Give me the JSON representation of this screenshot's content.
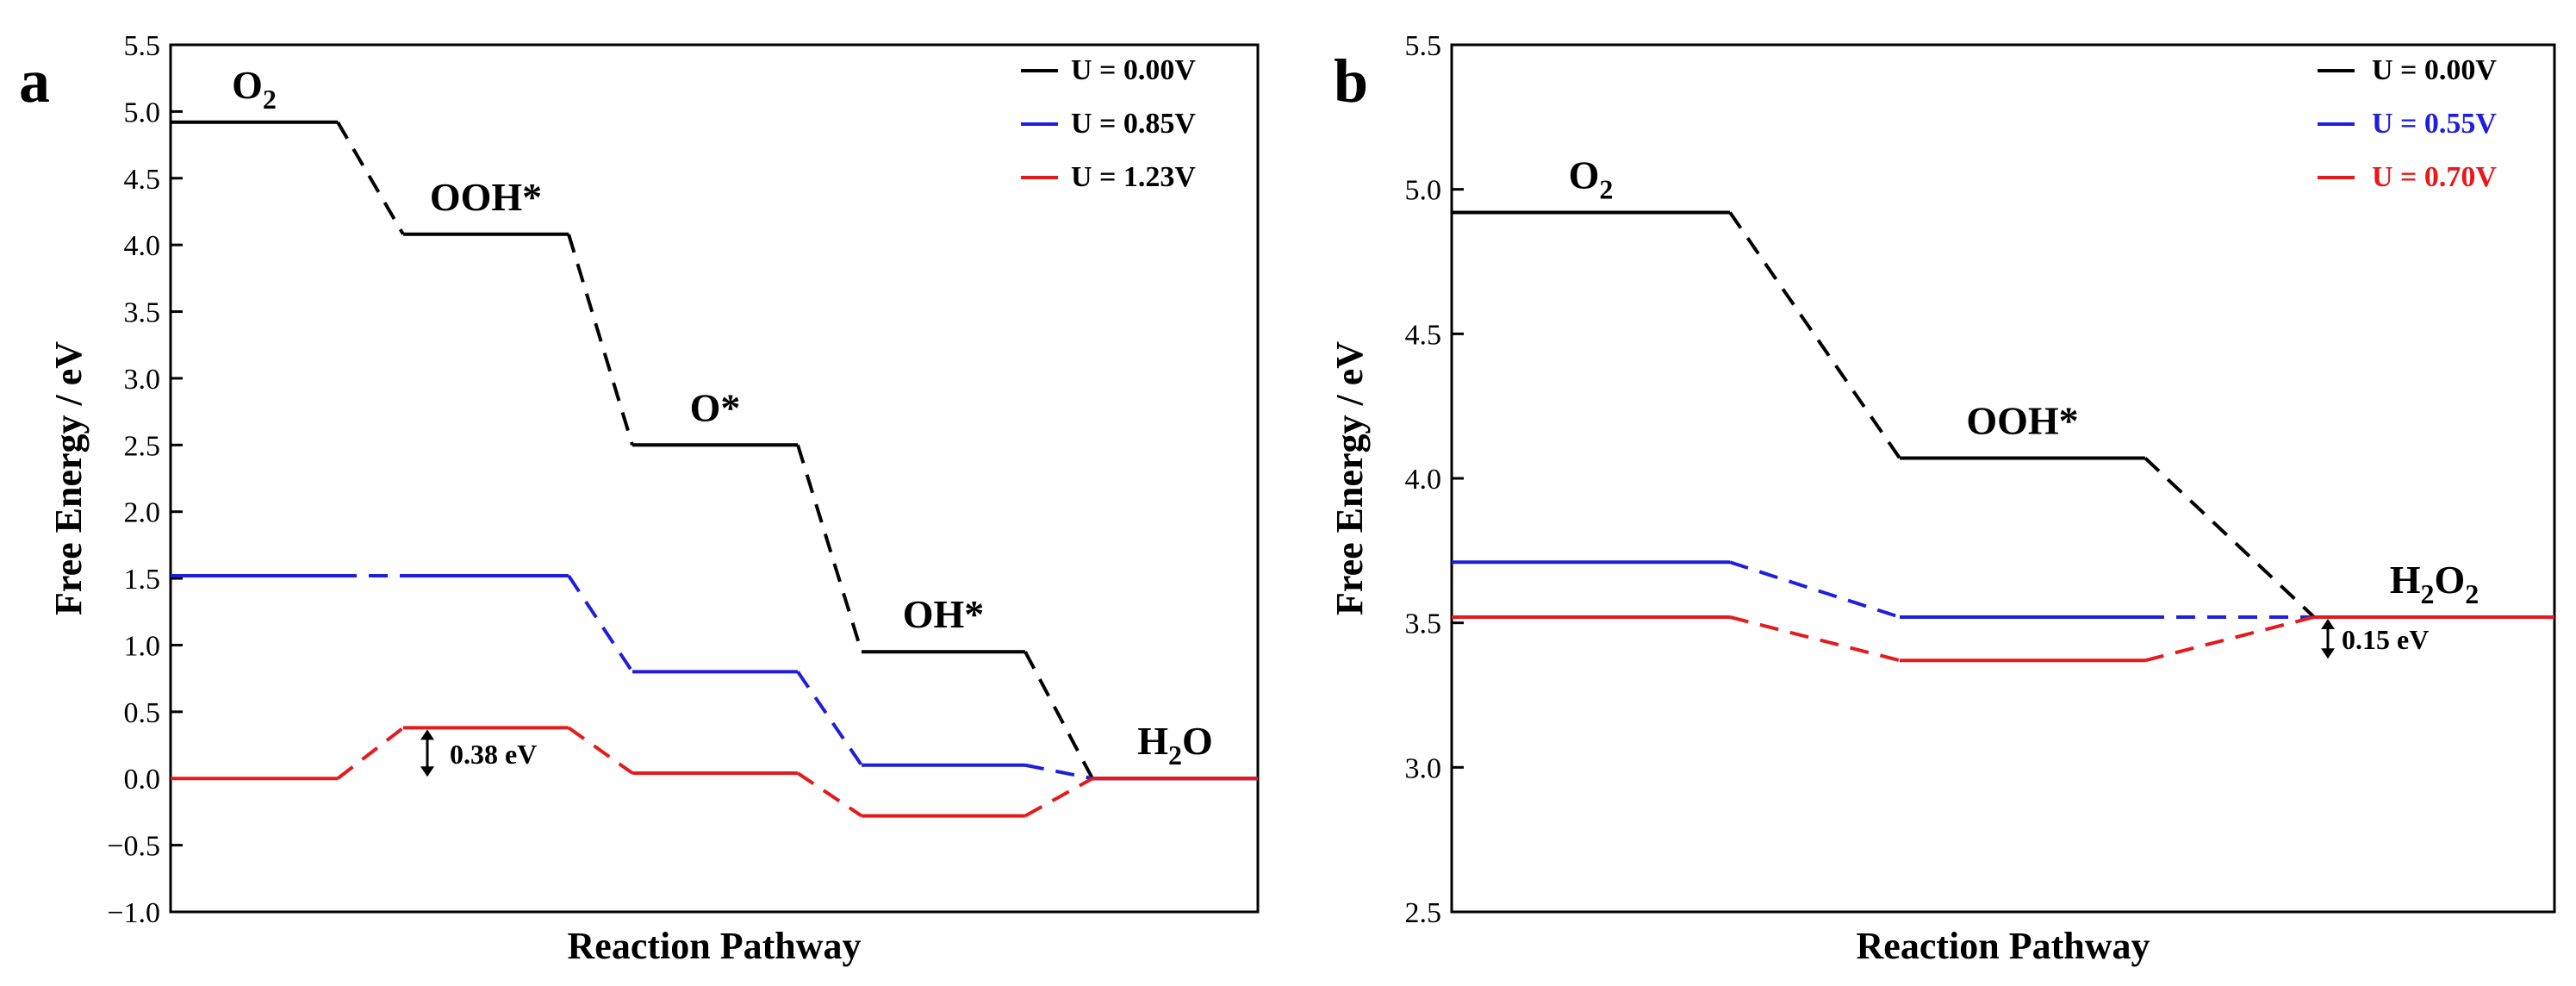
{
  "chart_data": [
    {
      "type": "line",
      "panel": "a",
      "xlabel": "Reaction Pathway",
      "ylabel": "Free Energy / eV",
      "ylim": [
        -1.0,
        5.5
      ],
      "yticks": [
        "5.5",
        "5.0",
        "4.5",
        "4.0",
        "3.5",
        "3.0",
        "2.5",
        "2.0",
        "1.5",
        "1.0",
        "0.5",
        "0.0",
        "−0.5",
        "−1.0"
      ],
      "ytick_values": [
        5.5,
        5.0,
        4.5,
        4.0,
        3.5,
        3.0,
        2.5,
        2.0,
        1.5,
        1.0,
        0.5,
        0.0,
        -0.5,
        -1.0
      ],
      "steps": [
        "O2",
        "OOH*",
        "O*",
        "OH*",
        "H2O"
      ],
      "step_labels": [
        {
          "main": "O",
          "sub": "2",
          "tail": ""
        },
        {
          "main": "OOH*",
          "sub": "",
          "tail": ""
        },
        {
          "main": "O*",
          "sub": "",
          "tail": ""
        },
        {
          "main": "OH*",
          "sub": "",
          "tail": ""
        },
        {
          "main": "H",
          "sub": "2",
          "tail": "O"
        }
      ],
      "series": [
        {
          "name": "U = 0.00V",
          "color": "#000000",
          "values": [
            4.92,
            4.08,
            2.5,
            0.95,
            0.0
          ]
        },
        {
          "name": "U = 0.85V",
          "color": "#1f1fdb",
          "values": [
            1.52,
            1.52,
            0.8,
            0.1,
            0.0
          ]
        },
        {
          "name": "U = 1.23V",
          "color": "#e41a1c",
          "values": [
            0.0,
            0.38,
            0.04,
            -0.28,
            0.0
          ]
        }
      ],
      "legend": {
        "position": "top-right"
      },
      "annotation": {
        "text": "0.38 eV",
        "from": 0.0,
        "to": 0.38
      }
    },
    {
      "type": "line",
      "panel": "b",
      "xlabel": "Reaction Pathway",
      "ylabel": "Free Energy / eV",
      "ylim": [
        2.5,
        5.5
      ],
      "yticks": [
        "5.5",
        "5.0",
        "4.5",
        "4.0",
        "3.5",
        "3.0",
        "2.5"
      ],
      "ytick_values": [
        5.5,
        5.0,
        4.5,
        4.0,
        3.5,
        3.0,
        2.5
      ],
      "steps": [
        "O2",
        "OOH*",
        "H2O2"
      ],
      "step_labels": [
        {
          "main": "O",
          "sub": "2",
          "tail": ""
        },
        {
          "main": "OOH*",
          "sub": "",
          "tail": ""
        },
        {
          "main": "H",
          "sub": "2",
          "tail": "O",
          "sub2": "2"
        }
      ],
      "series": [
        {
          "name": "U = 0.00V",
          "color": "#000000",
          "values": [
            4.92,
            4.07,
            3.52
          ]
        },
        {
          "name": "U = 0.55V",
          "color": "#1f1fdb",
          "values": [
            3.71,
            3.52,
            3.52
          ]
        },
        {
          "name": "U = 0.70V",
          "color": "#e41a1c",
          "values": [
            3.52,
            3.37,
            3.52
          ]
        }
      ],
      "legend": {
        "position": "top-right"
      },
      "annotation": {
        "text": "0.15 eV",
        "from": 3.37,
        "to": 3.52
      }
    }
  ]
}
